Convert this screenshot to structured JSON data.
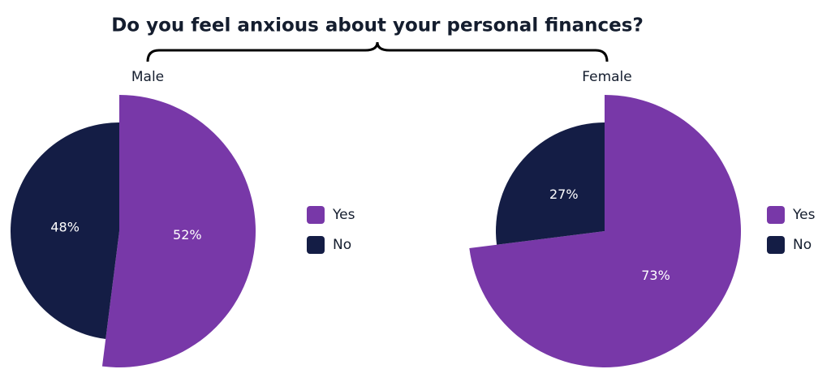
{
  "title": "Do you feel anxious about your personal finances?",
  "chart_data": [
    {
      "type": "pie",
      "title": "Male",
      "categories": [
        "Yes",
        "No"
      ],
      "values": [
        52,
        48
      ],
      "value_labels": [
        "52%",
        "48%"
      ],
      "colors": [
        "#7838a8",
        "#141d45"
      ]
    },
    {
      "type": "pie",
      "title": "Female",
      "categories": [
        "Yes",
        "No"
      ],
      "values": [
        73,
        27
      ],
      "value_labels": [
        "73%",
        "27%"
      ],
      "colors": [
        "#7838a8",
        "#141d45"
      ]
    }
  ]
}
